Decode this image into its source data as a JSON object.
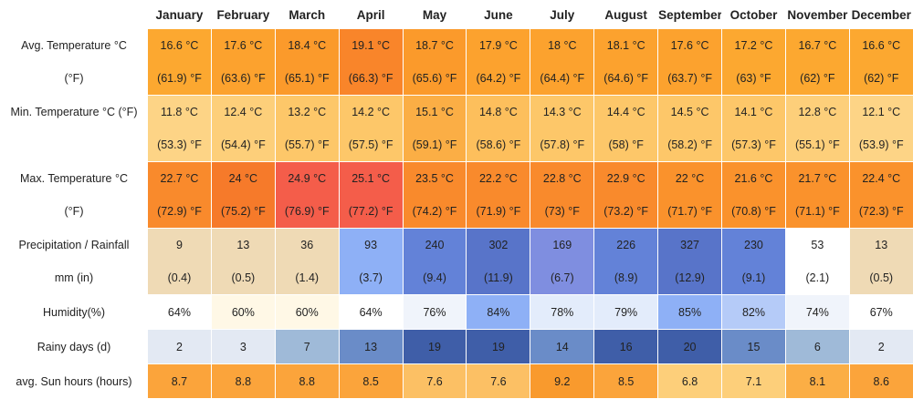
{
  "months": [
    "January",
    "February",
    "March",
    "April",
    "May",
    "June",
    "July",
    "August",
    "September",
    "October",
    "November",
    "December"
  ],
  "rows": {
    "avg_temp": {
      "label_line1": "Avg. Temperature °C",
      "label_line2": "(°F)",
      "cells": [
        {
          "c": "16.6 °C",
          "f": "(61.9) °F",
          "bg": "#fca830"
        },
        {
          "c": "17.6 °C",
          "f": "(63.6) °F",
          "bg": "#fca22e"
        },
        {
          "c": "18.4 °C",
          "f": "(65.1) °F",
          "bg": "#fb9a2b"
        },
        {
          "c": "19.1 °C",
          "f": "(66.3) °F",
          "bg": "#f9852a"
        },
        {
          "c": "18.7 °C",
          "f": "(65.6) °F",
          "bg": "#fb9a2b"
        },
        {
          "c": "17.9 °C",
          "f": "(64.2) °F",
          "bg": "#fca22e"
        },
        {
          "c": "18 °C",
          "f": "(64.4) °F",
          "bg": "#fca22e"
        },
        {
          "c": "18.1 °C",
          "f": "(64.6) °F",
          "bg": "#fca22e"
        },
        {
          "c": "17.6 °C",
          "f": "(63.7) °F",
          "bg": "#fca22e"
        },
        {
          "c": "17.2 °C",
          "f": "(63) °F",
          "bg": "#fca830"
        },
        {
          "c": "16.7 °C",
          "f": "(62) °F",
          "bg": "#fca830"
        },
        {
          "c": "16.6 °C",
          "f": "(62) °F",
          "bg": "#fca830"
        }
      ]
    },
    "min_temp": {
      "label_line1": "Min. Temperature °C (°F)",
      "label_line2": "",
      "cells": [
        {
          "c": "11.8 °C",
          "f": "(53.3) °F",
          "bg": "#fdd486"
        },
        {
          "c": "12.4 °C",
          "f": "(54.4) °F",
          "bg": "#fdcf7a"
        },
        {
          "c": "13.2 °C",
          "f": "(55.7) °F",
          "bg": "#fdc769"
        },
        {
          "c": "14.2 °C",
          "f": "(57.5) °F",
          "bg": "#fdc769"
        },
        {
          "c": "15.1 °C",
          "f": "(59.1) °F",
          "bg": "#fbae45"
        },
        {
          "c": "14.8 °C",
          "f": "(58.6) °F",
          "bg": "#fdbf5c"
        },
        {
          "c": "14.3 °C",
          "f": "(57.8) °F",
          "bg": "#fdc769"
        },
        {
          "c": "14.4 °C",
          "f": "(58) °F",
          "bg": "#fdc769"
        },
        {
          "c": "14.5 °C",
          "f": "(58.2) °F",
          "bg": "#fdc769"
        },
        {
          "c": "14.1 °C",
          "f": "(57.3) °F",
          "bg": "#fdc769"
        },
        {
          "c": "12.8 °C",
          "f": "(55.1) °F",
          "bg": "#fdcf7a"
        },
        {
          "c": "12.1 °C",
          "f": "(53.9) °F",
          "bg": "#fdd486"
        }
      ]
    },
    "max_temp": {
      "label_line1": "Max. Temperature °C",
      "label_line2": "(°F)",
      "cells": [
        {
          "c": "22.7 °C",
          "f": "(72.9) °F",
          "bg": "#f98a2c"
        },
        {
          "c": "24 °C",
          "f": "(75.2) °F",
          "bg": "#f67a2a"
        },
        {
          "c": "24.9 °C",
          "f": "(76.9) °F",
          "bg": "#f45d4a"
        },
        {
          "c": "25.1 °C",
          "f": "(77.2) °F",
          "bg": "#f45d4a"
        },
        {
          "c": "23.5 °C",
          "f": "(74.2) °F",
          "bg": "#f98a2c"
        },
        {
          "c": "22.2 °C",
          "f": "(71.9) °F",
          "bg": "#f98a2c"
        },
        {
          "c": "22.8 °C",
          "f": "(73) °F",
          "bg": "#f98a2c"
        },
        {
          "c": "22.9 °C",
          "f": "(73.2) °F",
          "bg": "#f98a2c"
        },
        {
          "c": "22 °C",
          "f": "(71.7) °F",
          "bg": "#fa922c"
        },
        {
          "c": "21.6 °C",
          "f": "(70.8) °F",
          "bg": "#fa922c"
        },
        {
          "c": "21.7 °C",
          "f": "(71.1) °F",
          "bg": "#fa922c"
        },
        {
          "c": "22.4 °C",
          "f": "(72.3) °F",
          "bg": "#fa922c"
        }
      ]
    },
    "precip": {
      "label_line1": "Precipitation / Rainfall",
      "label_line2": "mm (in)",
      "cells": [
        {
          "c": "9",
          "f": "(0.4)",
          "bg": "#efdab5"
        },
        {
          "c": "13",
          "f": "(0.5)",
          "bg": "#efdab5"
        },
        {
          "c": "36",
          "f": "(1.4)",
          "bg": "#efdab5"
        },
        {
          "c": "93",
          "f": "(3.7)",
          "bg": "#8eb0f6"
        },
        {
          "c": "240",
          "f": "(9.4)",
          "bg": "#6382d8"
        },
        {
          "c": "302",
          "f": "(11.9)",
          "bg": "#5874c9"
        },
        {
          "c": "169",
          "f": "(6.7)",
          "bg": "#7f8ee0"
        },
        {
          "c": "226",
          "f": "(8.9)",
          "bg": "#6382d8"
        },
        {
          "c": "327",
          "f": "(12.9)",
          "bg": "#5874c9"
        },
        {
          "c": "230",
          "f": "(9.1)",
          "bg": "#6382d8"
        },
        {
          "c": "53",
          "f": "(2.1)",
          "bg": "#ffffff"
        },
        {
          "c": "13",
          "f": "(0.5)",
          "bg": "#efdab5"
        }
      ]
    },
    "humidity": {
      "label": "Humidity(%)",
      "cells": [
        {
          "v": "64%",
          "bg": "#ffffff"
        },
        {
          "v": "60%",
          "bg": "#fff8e6"
        },
        {
          "v": "60%",
          "bg": "#fff8e6"
        },
        {
          "v": "64%",
          "bg": "#ffffff"
        },
        {
          "v": "76%",
          "bg": "#f0f4fb"
        },
        {
          "v": "84%",
          "bg": "#8eb0f6"
        },
        {
          "v": "78%",
          "bg": "#e3ecfb"
        },
        {
          "v": "79%",
          "bg": "#e3ecfb"
        },
        {
          "v": "85%",
          "bg": "#8eb0f6"
        },
        {
          "v": "82%",
          "bg": "#b5cbf8"
        },
        {
          "v": "74%",
          "bg": "#f0f4fb"
        },
        {
          "v": "67%",
          "bg": "#ffffff"
        }
      ]
    },
    "rainy_days": {
      "label": "Rainy days (d)",
      "cells": [
        {
          "v": "2",
          "bg": "#e3e9f3"
        },
        {
          "v": "3",
          "bg": "#e3e9f3"
        },
        {
          "v": "7",
          "bg": "#9fbad8"
        },
        {
          "v": "13",
          "bg": "#6a8cc8"
        },
        {
          "v": "19",
          "bg": "#3f5ea8"
        },
        {
          "v": "19",
          "bg": "#3f5ea8"
        },
        {
          "v": "14",
          "bg": "#6a8cc8"
        },
        {
          "v": "16",
          "bg": "#3f5ea8"
        },
        {
          "v": "20",
          "bg": "#3f5ea8"
        },
        {
          "v": "15",
          "bg": "#6a8cc8"
        },
        {
          "v": "6",
          "bg": "#9fbad8"
        },
        {
          "v": "2",
          "bg": "#e3e9f3"
        }
      ]
    },
    "sun_hours": {
      "label": "avg. Sun hours (hours)",
      "cells": [
        {
          "v": "8.7",
          "bg": "#fba43b"
        },
        {
          "v": "8.8",
          "bg": "#fba43b"
        },
        {
          "v": "8.8",
          "bg": "#fba43b"
        },
        {
          "v": "8.5",
          "bg": "#fba43b"
        },
        {
          "v": "7.6",
          "bg": "#fcc064"
        },
        {
          "v": "7.6",
          "bg": "#fcc064"
        },
        {
          "v": "9.2",
          "bg": "#f99a2d"
        },
        {
          "v": "8.5",
          "bg": "#fba43b"
        },
        {
          "v": "6.8",
          "bg": "#fdcf7a"
        },
        {
          "v": "7.1",
          "bg": "#fdcf7a"
        },
        {
          "v": "8.1",
          "bg": "#fbae45"
        },
        {
          "v": "8.6",
          "bg": "#fba43b"
        }
      ]
    }
  }
}
